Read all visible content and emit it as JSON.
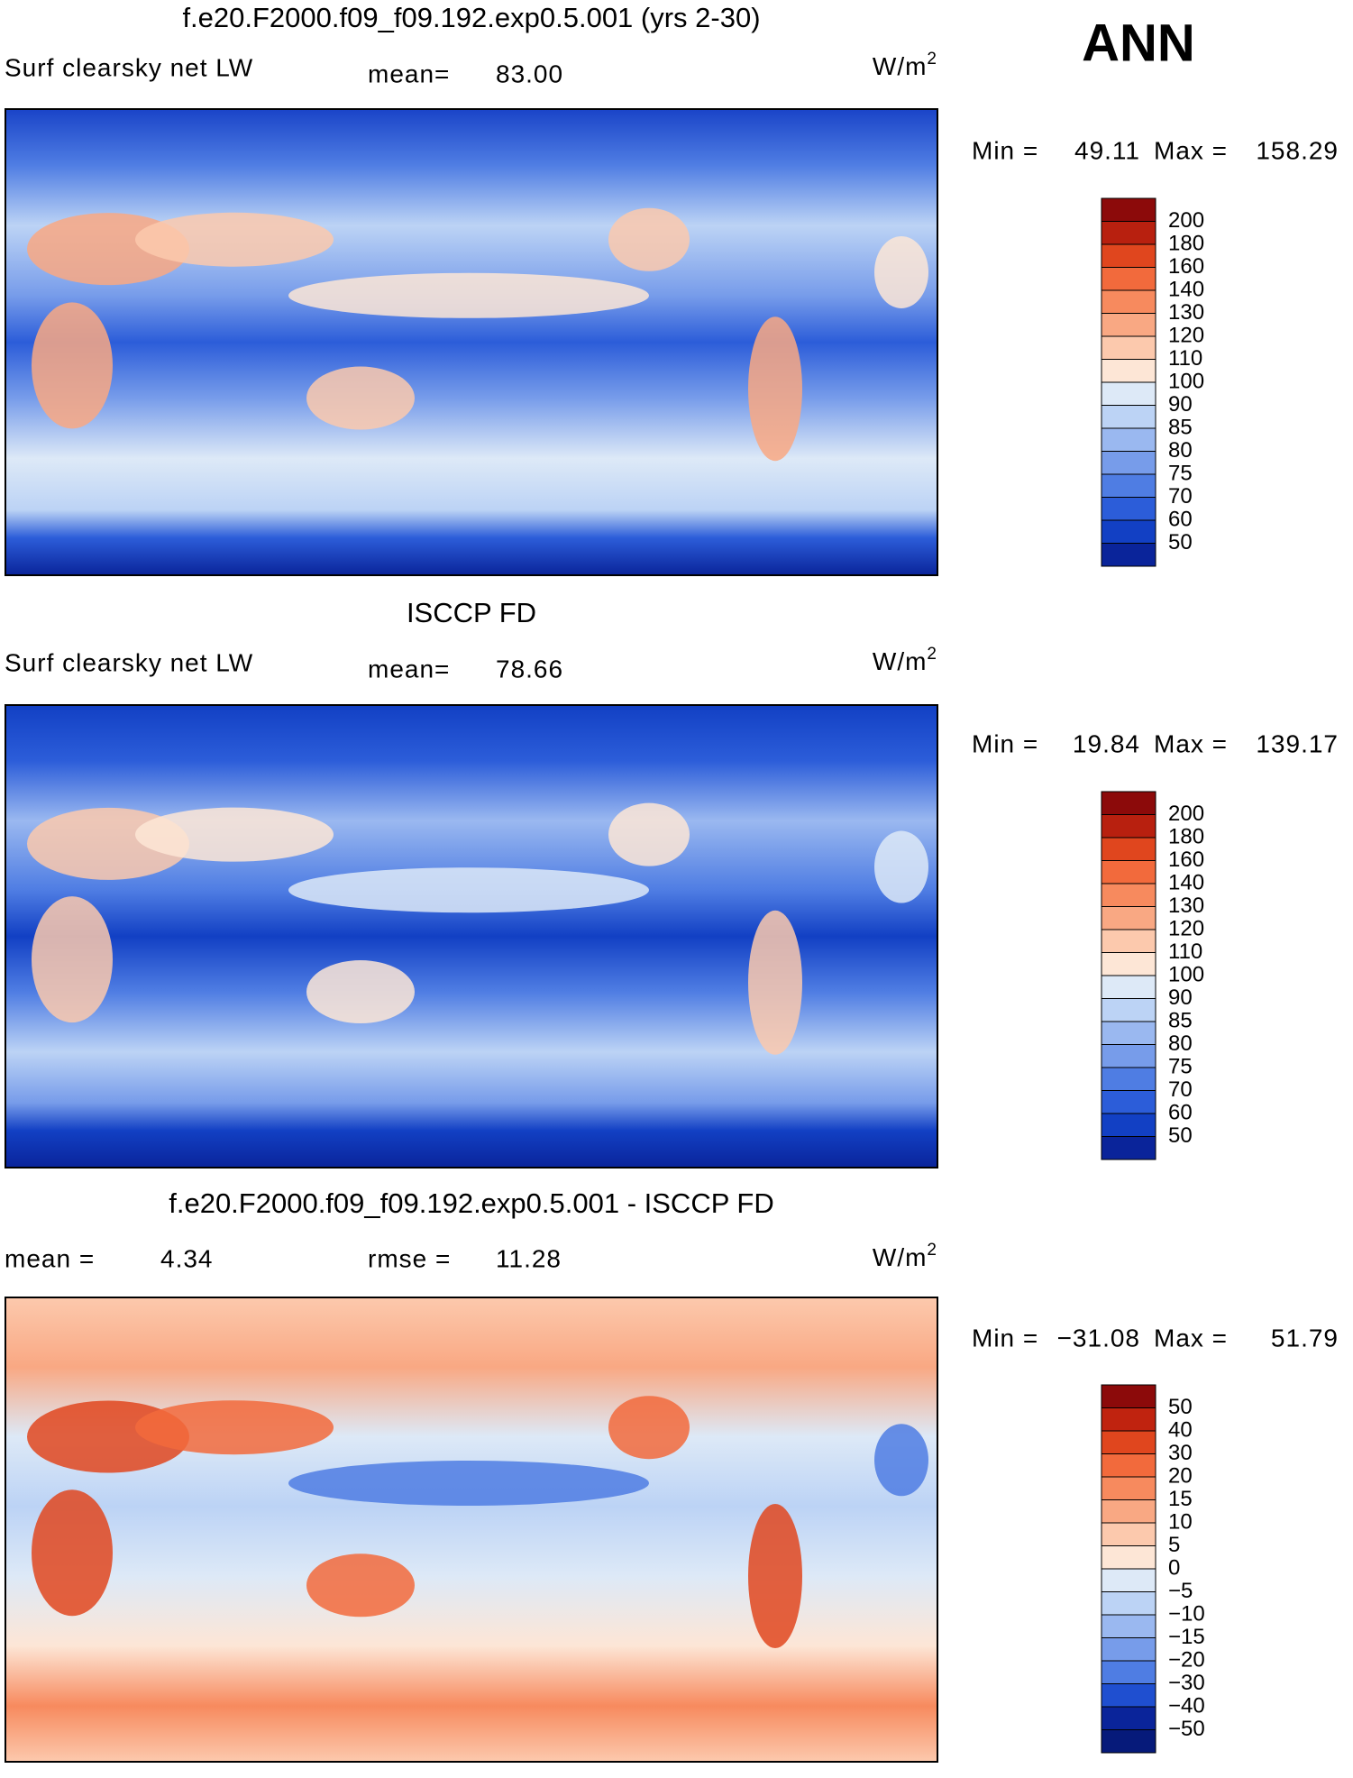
{
  "annual_label": "ANN",
  "panels": [
    {
      "title": "f.e20.F2000.f09_f09.192.exp0.5.001 (yrs 2-30)",
      "left_label": "Surf  clearsky  net  LW",
      "stat1_label": "mean=",
      "stat1_value": "83.00",
      "units": {
        "base": "W/m",
        "sup": "2"
      },
      "min_label": "Min  =",
      "min": "49.11",
      "max_label": "Max  =",
      "max": "158.29",
      "colorbar": {
        "labels": [
          "200",
          "180",
          "160",
          "140",
          "130",
          "120",
          "110",
          "100",
          "90",
          "85",
          "80",
          "75",
          "70",
          "60",
          "50"
        ],
        "colors": [
          "#8c0a0a",
          "#b8200f",
          "#e0461e",
          "#f26a3c",
          "#f78a5e",
          "#f9a883",
          "#fcc9ad",
          "#fde6d6",
          "#dde9f7",
          "#bcd3f5",
          "#9ab8f0",
          "#779cea",
          "#4f7de3",
          "#2c5dd9",
          "#1240c4",
          "#0a249a"
        ]
      }
    },
    {
      "title": "ISCCP FD",
      "left_label": "Surf  clearsky  net  LW",
      "stat1_label": "mean=",
      "stat1_value": "78.66",
      "units": {
        "base": "W/m",
        "sup": "2"
      },
      "min_label": "Min  =",
      "min": "19.84",
      "max_label": "Max  =",
      "max": "139.17",
      "colorbar": {
        "labels": [
          "200",
          "180",
          "160",
          "140",
          "130",
          "120",
          "110",
          "100",
          "90",
          "85",
          "80",
          "75",
          "70",
          "60",
          "50"
        ],
        "colors": [
          "#8c0a0a",
          "#b8200f",
          "#e0461e",
          "#f26a3c",
          "#f78a5e",
          "#f9a883",
          "#fcc9ad",
          "#fde6d6",
          "#dde9f7",
          "#bcd3f5",
          "#9ab8f0",
          "#779cea",
          "#4f7de3",
          "#2c5dd9",
          "#1240c4",
          "#0a249a"
        ]
      }
    },
    {
      "title": "f.e20.F2000.f09_f09.192.exp0.5.001 - ISCCP FD",
      "left_label": "mean  =",
      "left_value": "4.34",
      "stat1_label": "rmse  =",
      "stat1_value": "11.28",
      "units": {
        "base": "W/m",
        "sup": "2"
      },
      "min_label": "Min  =",
      "min": "−31.08",
      "max_label": "Max  =",
      "max": "51.79",
      "colorbar": {
        "labels": [
          "50",
          "40",
          "30",
          "20",
          "15",
          "10",
          "5",
          "0",
          "−5",
          "−10",
          "−15",
          "−20",
          "−30",
          "−40",
          "−50"
        ],
        "colors": [
          "#8c0a0a",
          "#c0230f",
          "#e0461e",
          "#f26a3c",
          "#f78a5e",
          "#f9a883",
          "#fcc9ad",
          "#fde6d6",
          "#dde9f7",
          "#bcd3f5",
          "#9ab8f0",
          "#779cea",
          "#4f7de3",
          "#1f4fd0",
          "#0a249a",
          "#061a7a"
        ]
      }
    }
  ]
}
